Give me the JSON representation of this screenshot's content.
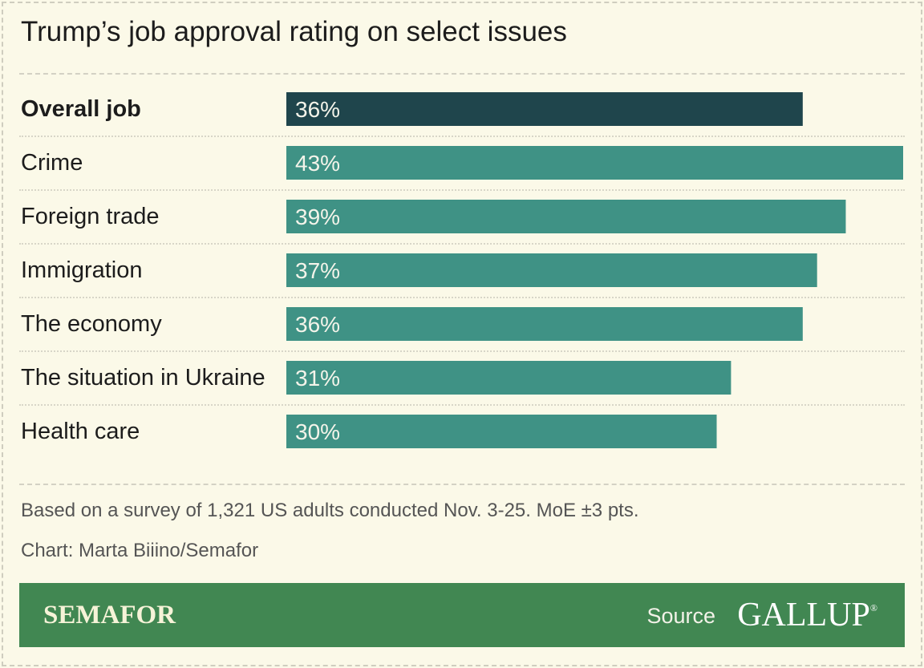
{
  "chart_data": {
    "type": "bar",
    "orientation": "horizontal",
    "title": "Trump’s job approval rating on select issues",
    "categories": [
      "Overall job",
      "Crime",
      "Foreign trade",
      "Immigration",
      "The economy",
      "The situation in Ukraine",
      "Health care"
    ],
    "values": [
      36,
      43,
      39,
      37,
      36,
      31,
      30
    ],
    "value_labels": [
      "36%",
      "43%",
      "39%",
      "37%",
      "36%",
      "31%",
      "30%"
    ],
    "highlight_category": "Overall job",
    "colors": {
      "highlight": "#1f454c",
      "bar": "#3f9285",
      "value_text": "#f4f4ea"
    },
    "xlim": [
      0,
      43
    ],
    "grid": false
  },
  "notes": {
    "survey": "Based on a survey of 1,321 US adults conducted Nov. 3-25. MoE ±3 pts.",
    "credit": "Chart: Marta Biiino/Semafor"
  },
  "footer": {
    "brand": "SEMAFOR",
    "source_label": "Source",
    "source": "GALLUP",
    "source_mark": "®",
    "color": "#418752"
  }
}
